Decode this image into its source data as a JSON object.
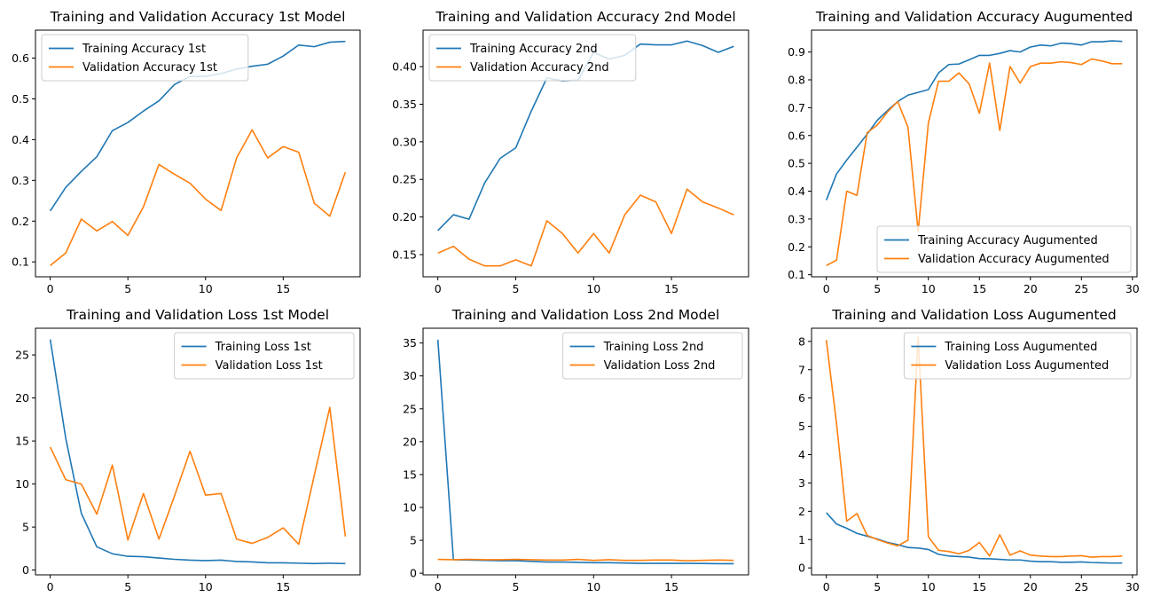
{
  "chart_data": [
    {
      "type": "line",
      "title": "Training and Validation Accuracy 1st Model",
      "x": [
        0,
        1,
        2,
        3,
        4,
        5,
        6,
        7,
        8,
        9,
        10,
        11,
        12,
        13,
        14,
        15,
        16,
        17,
        18,
        19
      ],
      "series": [
        {
          "name": "Training Accuracy 1st",
          "color": "#1f77b4",
          "values": [
            0.225,
            0.283,
            0.322,
            0.358,
            0.422,
            0.442,
            0.47,
            0.495,
            0.535,
            0.555,
            0.555,
            0.562,
            0.573,
            0.58,
            0.585,
            0.605,
            0.632,
            0.628,
            0.639,
            0.641
          ]
        },
        {
          "name": "Validation Accuracy 1st",
          "color": "#ff7f0e",
          "values": [
            0.091,
            0.122,
            0.205,
            0.176,
            0.199,
            0.165,
            0.235,
            0.339,
            0.315,
            0.293,
            0.254,
            0.226,
            0.355,
            0.424,
            0.355,
            0.383,
            0.369,
            0.244,
            0.212,
            0.32
          ]
        }
      ],
      "xlim": [
        -0.95,
        19.95
      ],
      "ylim": [
        0.0635,
        0.6685
      ],
      "xticks": [
        0,
        5,
        10,
        15
      ],
      "yticks": [
        0.1,
        0.2,
        0.3,
        0.4,
        0.5,
        0.6
      ],
      "ytick_labels": [
        "0.1",
        "0.2",
        "0.3",
        "0.4",
        "0.5",
        "0.6"
      ],
      "legend": "upper-left"
    },
    {
      "type": "line",
      "title": "Training and Validation Accuracy 2nd Model",
      "x": [
        0,
        1,
        2,
        3,
        4,
        5,
        6,
        7,
        8,
        9,
        10,
        11,
        12,
        13,
        14,
        15,
        16,
        17,
        18,
        19
      ],
      "series": [
        {
          "name": "Training Accuracy 2nd",
          "color": "#1f77b4",
          "values": [
            0.182,
            0.203,
            0.197,
            0.245,
            0.278,
            0.292,
            0.341,
            0.385,
            0.381,
            0.382,
            0.419,
            0.41,
            0.415,
            0.43,
            0.429,
            0.429,
            0.434,
            0.428,
            0.419,
            0.427
          ]
        },
        {
          "name": "Validation Accuracy 2nd",
          "color": "#ff7f0e",
          "values": [
            0.152,
            0.161,
            0.144,
            0.135,
            0.135,
            0.143,
            0.135,
            0.195,
            0.178,
            0.152,
            0.178,
            0.152,
            0.203,
            0.229,
            0.22,
            0.178,
            0.237,
            0.22,
            0.212,
            0.203
          ]
        }
      ],
      "xlim": [
        -0.95,
        19.95
      ],
      "ylim": [
        0.1205,
        0.4485
      ],
      "xticks": [
        0,
        5,
        10,
        15
      ],
      "yticks": [
        0.15,
        0.2,
        0.25,
        0.3,
        0.35,
        0.4
      ],
      "ytick_labels": [
        "0.15",
        "0.20",
        "0.25",
        "0.30",
        "0.35",
        "0.40"
      ],
      "legend": "upper-left"
    },
    {
      "type": "line",
      "title": "Training and Validation Accuracy Augumented",
      "x": [
        0,
        1,
        2,
        3,
        4,
        5,
        6,
        7,
        8,
        9,
        10,
        11,
        12,
        13,
        14,
        15,
        16,
        17,
        18,
        19,
        20,
        21,
        22,
        23,
        24,
        25,
        26,
        27,
        28,
        29
      ],
      "series": [
        {
          "name": "Training Accuracy Augumented",
          "color": "#1f77b4",
          "values": [
            0.368,
            0.462,
            0.512,
            0.558,
            0.605,
            0.655,
            0.69,
            0.722,
            0.745,
            0.755,
            0.765,
            0.825,
            0.855,
            0.857,
            0.872,
            0.888,
            0.888,
            0.895,
            0.905,
            0.9,
            0.918,
            0.925,
            0.922,
            0.932,
            0.93,
            0.925,
            0.937,
            0.937,
            0.94,
            0.938
          ]
        },
        {
          "name": "Validation Accuracy Augumented",
          "color": "#ff7f0e",
          "values": [
            0.133,
            0.152,
            0.4,
            0.385,
            0.61,
            0.638,
            0.685,
            0.722,
            0.63,
            0.255,
            0.645,
            0.795,
            0.795,
            0.825,
            0.785,
            0.68,
            0.86,
            0.618,
            0.848,
            0.788,
            0.848,
            0.86,
            0.86,
            0.865,
            0.862,
            0.855,
            0.875,
            0.868,
            0.858,
            0.858
          ]
        }
      ],
      "xlim": [
        -1.45,
        30.45
      ],
      "ylim": [
        0.0925,
        0.9785
      ],
      "xticks": [
        0,
        5,
        10,
        15,
        20,
        25,
        30
      ],
      "yticks": [
        0.1,
        0.2,
        0.3,
        0.4,
        0.5,
        0.6,
        0.7,
        0.8,
        0.9
      ],
      "ytick_labels": [
        "0.1",
        "0.2",
        "0.3",
        "0.4",
        "0.5",
        "0.6",
        "0.7",
        "0.8",
        "0.9"
      ],
      "legend": "lower-right"
    },
    {
      "type": "line",
      "title": "Training and Validation Loss 1st Model",
      "x": [
        0,
        1,
        2,
        3,
        4,
        5,
        6,
        7,
        8,
        9,
        10,
        11,
        12,
        13,
        14,
        15,
        16,
        17,
        18,
        19
      ],
      "series": [
        {
          "name": "Training Loss 1st",
          "color": "#1f77b4",
          "values": [
            26.8,
            15.3,
            6.6,
            2.7,
            1.9,
            1.6,
            1.55,
            1.4,
            1.25,
            1.15,
            1.1,
            1.15,
            1.0,
            0.95,
            0.85,
            0.85,
            0.8,
            0.75,
            0.8,
            0.75
          ]
        },
        {
          "name": "Validation Loss 1st",
          "color": "#ff7f0e",
          "values": [
            14.3,
            10.5,
            10.0,
            6.5,
            12.2,
            3.5,
            8.9,
            3.6,
            8.6,
            13.8,
            8.7,
            8.9,
            3.6,
            3.1,
            3.8,
            4.9,
            3.0,
            11.0,
            18.9,
            3.9
          ]
        }
      ],
      "xlim": [
        -0.95,
        19.95
      ],
      "ylim": [
        -0.553,
        28.103
      ],
      "xticks": [
        0,
        5,
        10,
        15
      ],
      "yticks": [
        0,
        5,
        10,
        15,
        20,
        25
      ],
      "ytick_labels": [
        "0",
        "5",
        "10",
        "15",
        "20",
        "25"
      ],
      "legend": "upper-right"
    },
    {
      "type": "line",
      "title": "Training and Validation Loss 2nd Model",
      "x": [
        0,
        1,
        2,
        3,
        4,
        5,
        6,
        7,
        8,
        9,
        10,
        11,
        12,
        13,
        14,
        15,
        16,
        17,
        18,
        19
      ],
      "series": [
        {
          "name": "Training Loss 2nd",
          "color": "#1f77b4",
          "values": [
            35.5,
            2.05,
            2.0,
            1.95,
            1.9,
            1.9,
            1.8,
            1.7,
            1.7,
            1.65,
            1.6,
            1.6,
            1.55,
            1.5,
            1.5,
            1.5,
            1.5,
            1.48,
            1.45,
            1.45
          ]
        },
        {
          "name": "Validation Loss 2nd",
          "color": "#ff7f0e",
          "values": [
            2.1,
            2.05,
            2.1,
            2.05,
            2.05,
            2.1,
            2.05,
            2.0,
            2.0,
            2.1,
            1.95,
            2.05,
            1.95,
            1.95,
            2.0,
            2.0,
            1.9,
            1.95,
            2.0,
            1.95
          ]
        }
      ],
      "xlim": [
        -0.95,
        19.95
      ],
      "ylim": [
        -0.25,
        37.25
      ],
      "xticks": [
        0,
        5,
        10,
        15
      ],
      "yticks": [
        0,
        5,
        10,
        15,
        20,
        25,
        30,
        35
      ],
      "ytick_labels": [
        "0",
        "5",
        "10",
        "15",
        "20",
        "25",
        "30",
        "35"
      ],
      "legend": "upper-right"
    },
    {
      "type": "line",
      "title": "Training and Validation Loss Augumented",
      "x": [
        0,
        1,
        2,
        3,
        4,
        5,
        6,
        7,
        8,
        9,
        10,
        11,
        12,
        13,
        14,
        15,
        16,
        17,
        18,
        19,
        20,
        21,
        22,
        23,
        24,
        25,
        26,
        27,
        28,
        29
      ],
      "series": [
        {
          "name": "Training Loss Augumented",
          "color": "#1f77b4",
          "values": [
            1.95,
            1.55,
            1.4,
            1.22,
            1.12,
            1.02,
            0.9,
            0.82,
            0.72,
            0.7,
            0.65,
            0.48,
            0.42,
            0.4,
            0.38,
            0.33,
            0.32,
            0.3,
            0.28,
            0.28,
            0.24,
            0.22,
            0.22,
            0.2,
            0.2,
            0.21,
            0.19,
            0.18,
            0.17,
            0.17
          ]
        },
        {
          "name": "Validation Loss Augumented",
          "color": "#ff7f0e",
          "values": [
            8.05,
            5.1,
            1.65,
            1.92,
            1.15,
            1.0,
            0.88,
            0.78,
            0.98,
            8.15,
            1.1,
            0.62,
            0.58,
            0.5,
            0.62,
            0.9,
            0.42,
            1.17,
            0.45,
            0.6,
            0.45,
            0.42,
            0.4,
            0.4,
            0.42,
            0.43,
            0.38,
            0.4,
            0.4,
            0.42
          ]
        }
      ],
      "xlim": [
        -1.45,
        30.45
      ],
      "ylim": [
        -0.245,
        8.465
      ],
      "xticks": [
        0,
        5,
        10,
        15,
        20,
        25,
        30
      ],
      "yticks": [
        0,
        1,
        2,
        3,
        4,
        5,
        6,
        7,
        8
      ],
      "ytick_labels": [
        "0",
        "1",
        "2",
        "3",
        "4",
        "5",
        "6",
        "7",
        "8"
      ],
      "legend": "upper-right"
    }
  ]
}
